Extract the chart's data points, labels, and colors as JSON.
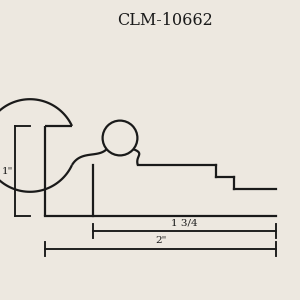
{
  "title": "CLM-10662",
  "title_fontsize": 11.5,
  "bg_color": "#ede8e0",
  "line_color": "#1a1a1a",
  "lw": 1.6,
  "figsize": [
    3.0,
    3.0
  ],
  "dpi": 100,
  "dim_vert_label": "1\"",
  "dim_horiz1_label": "1 3/4",
  "dim_horiz2_label": "2\""
}
